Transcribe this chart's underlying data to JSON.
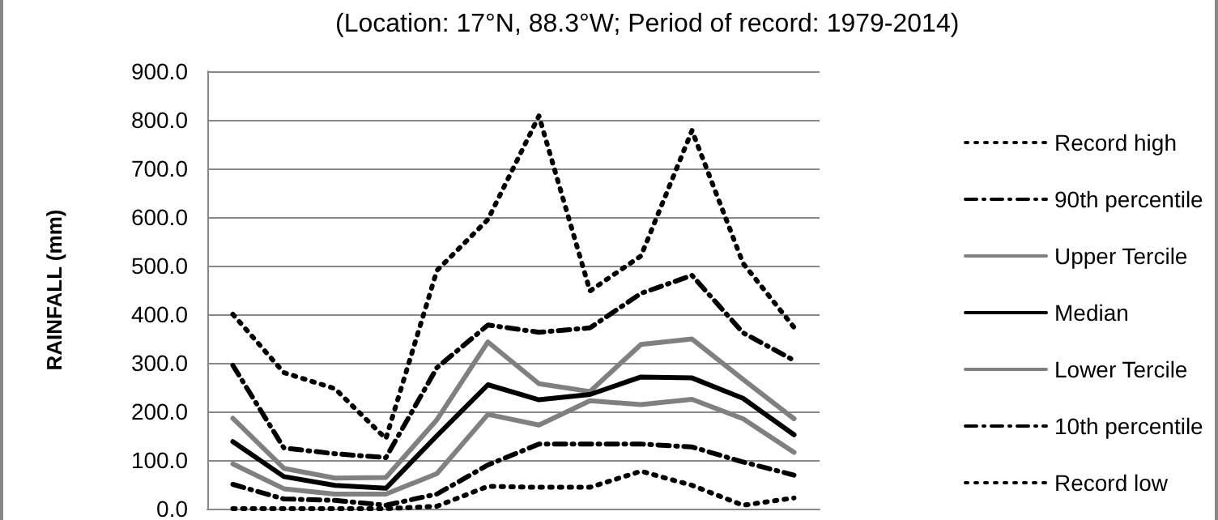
{
  "chart_data": {
    "type": "line",
    "title": "(Location: 17°N, 88.3°W; Period of record: 1979-2014)",
    "ylabel": "RAINFALL (mm)",
    "categories": [
      null,
      null,
      null,
      null,
      null,
      null,
      null,
      null,
      null,
      null,
      null,
      null
    ],
    "series": [
      {
        "name": "Record high",
        "color": "#000000",
        "line_style": "dotted",
        "values": [
          400,
          280,
          247,
          144,
          490,
          595,
          808,
          448,
          520,
          778,
          505,
          373
        ]
      },
      {
        "name": "90th percentile",
        "color": "#000000",
        "line_style": "dashdot",
        "values": [
          295,
          125,
          113,
          105,
          290,
          378,
          363,
          372,
          443,
          480,
          362,
          305
        ]
      },
      {
        "name": "Upper Tercile",
        "color": "#808080",
        "line_style": "solid",
        "values": [
          186,
          83,
          63,
          64,
          183,
          343,
          257,
          241,
          338,
          349,
          266,
          185
        ]
      },
      {
        "name": "Median",
        "color": "#000000",
        "line_style": "solid",
        "values": [
          138,
          66,
          48,
          42,
          150,
          255,
          224,
          235,
          271,
          269,
          227,
          152
        ]
      },
      {
        "name": "Lower Tercile",
        "color": "#808080",
        "line_style": "solid",
        "values": [
          92,
          41,
          30,
          30,
          72,
          194,
          172,
          222,
          214,
          225,
          185,
          116
        ]
      },
      {
        "name": "10th percentile",
        "color": "#000000",
        "line_style": "dashdot",
        "values": [
          50,
          20,
          17,
          7,
          30,
          90,
          133,
          133,
          133,
          127,
          96,
          69
        ]
      },
      {
        "name": "Record low",
        "color": "#000000",
        "line_style": "dotted",
        "values": [
          0,
          0,
          0,
          0,
          5,
          46,
          44,
          44,
          77,
          48,
          7,
          22
        ]
      }
    ],
    "ylim": [
      0,
      900
    ],
    "yticks": [
      {
        "value": 0,
        "label": "0.0"
      },
      {
        "value": 100,
        "label": "100.0"
      },
      {
        "value": 200,
        "label": "200.0"
      },
      {
        "value": 300,
        "label": "300.0"
      },
      {
        "value": 400,
        "label": "400.0"
      },
      {
        "value": 500,
        "label": "500.0"
      },
      {
        "value": 600,
        "label": "600.0"
      },
      {
        "value": 700,
        "label": "700.0"
      },
      {
        "value": 800,
        "label": "800.0"
      },
      {
        "value": 900,
        "label": "900.0"
      }
    ],
    "grid": "y",
    "legend": "right",
    "marker": "none",
    "tick_labels": "y"
  }
}
